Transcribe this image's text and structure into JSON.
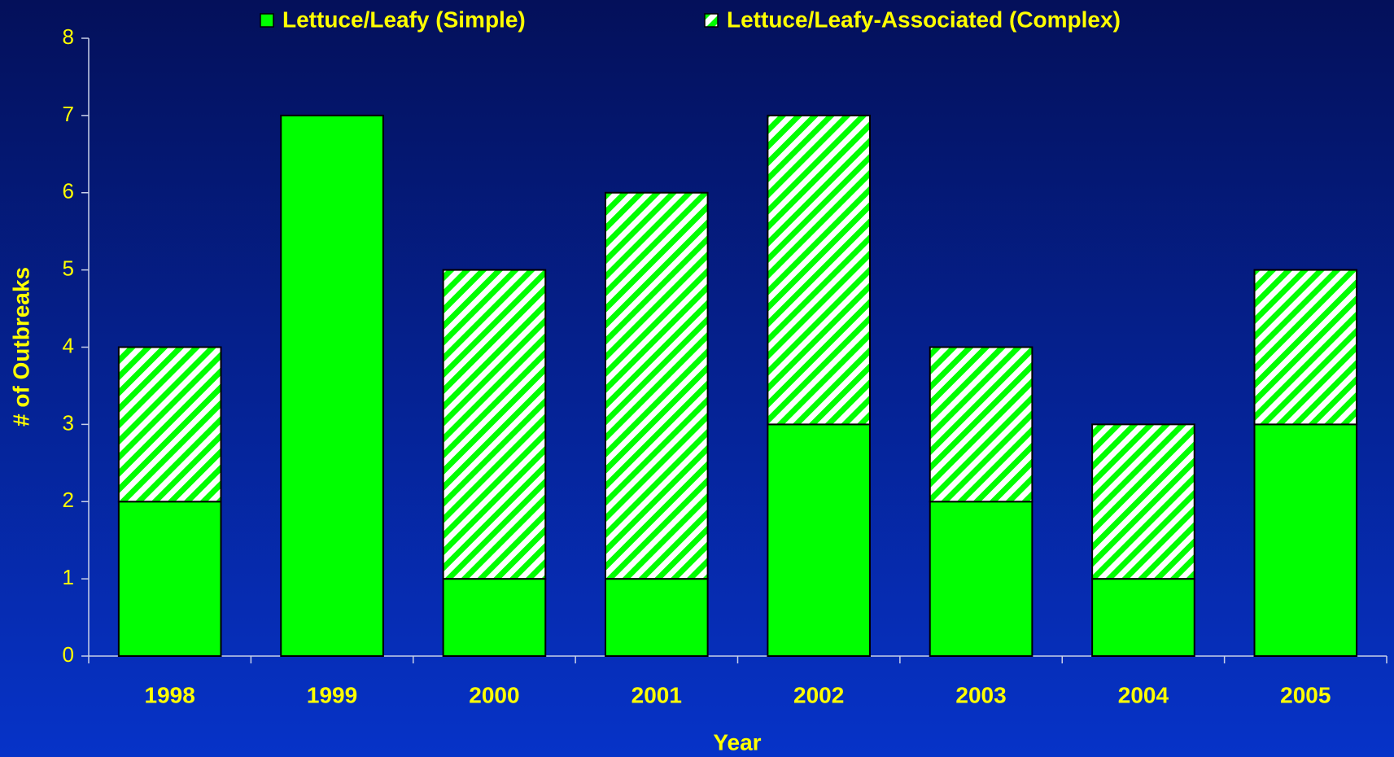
{
  "chart_data": {
    "type": "stacked_bar",
    "x_label": "Year",
    "y_label": "# of Outbreaks",
    "categories": [
      "1998",
      "1999",
      "2000",
      "2001",
      "2002",
      "2003",
      "2004",
      "2005"
    ],
    "series": [
      {
        "name": "Lettuce/Leafy (Simple)",
        "color": "#00ff00",
        "hatch": false,
        "values": [
          2,
          7,
          1,
          1,
          3,
          2,
          1,
          3
        ]
      },
      {
        "name": "Lettuce/Leafy-Associated (Complex)",
        "color": "#00ff00",
        "hatch": true,
        "values": [
          2,
          0,
          4,
          5,
          4,
          2,
          2,
          2
        ]
      }
    ],
    "ylim": [
      0,
      8
    ],
    "yticks": [
      0,
      1,
      2,
      3,
      4,
      5,
      6,
      7,
      8
    ],
    "grid": false,
    "legend": "top"
  }
}
